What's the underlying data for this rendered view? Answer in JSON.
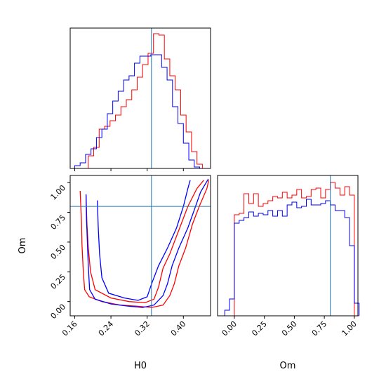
{
  "chart_data": [
    {
      "panel": "H0 marginal",
      "type": "histogram",
      "xlabel": "",
      "ylabel": "",
      "xlim": [
        0.15,
        0.46
      ],
      "x_ticks": [
        0.16,
        0.24,
        0.32,
        0.4
      ],
      "truth_x": 0.3295,
      "bin_edges": [
        0.16,
        0.166,
        0.172,
        0.178,
        0.184,
        0.19,
        0.196,
        0.202,
        0.208,
        0.214,
        0.22,
        0.226,
        0.232,
        0.238,
        0.244,
        0.25,
        0.256,
        0.262,
        0.268,
        0.274,
        0.28,
        0.286,
        0.292,
        0.298,
        0.304,
        0.31,
        0.316,
        0.322,
        0.328,
        0.334,
        0.34,
        0.346,
        0.352,
        0.358,
        0.364,
        0.37,
        0.376,
        0.382,
        0.388,
        0.394,
        0.4,
        0.406,
        0.412,
        0.418,
        0.424,
        0.43,
        0.436,
        0.442,
        0.448
      ],
      "series": [
        {
          "color": "#ff0000",
          "counts": [
            0.0,
            0.0,
            0.0,
            0.0,
            0.0,
            0.09,
            0.09,
            0.15,
            0.15,
            0.28,
            0.28,
            0.3,
            0.3,
            0.34,
            0.34,
            0.38,
            0.38,
            0.44,
            0.44,
            0.49,
            0.49,
            0.56,
            0.56,
            0.65,
            0.65,
            0.74,
            0.74,
            0.82,
            0.82,
            0.96,
            0.96,
            0.95,
            0.95,
            0.78,
            0.78,
            0.66,
            0.66,
            0.56,
            0.56,
            0.38,
            0.38,
            0.26,
            0.26,
            0.12,
            0.12,
            0.03,
            0.03,
            0.0
          ]
        },
        {
          "color": "#0000ff",
          "counts": [
            0.02,
            0.02,
            0.04,
            0.04,
            0.1,
            0.1,
            0.14,
            0.14,
            0.22,
            0.22,
            0.28,
            0.28,
            0.39,
            0.39,
            0.48,
            0.48,
            0.55,
            0.55,
            0.63,
            0.63,
            0.66,
            0.66,
            0.75,
            0.75,
            0.8,
            0.8,
            0.8,
            0.8,
            0.81,
            0.81,
            0.81,
            0.81,
            0.72,
            0.72,
            0.63,
            0.63,
            0.44,
            0.44,
            0.32,
            0.32,
            0.18,
            0.18,
            0.06,
            0.06,
            0.01,
            0.01,
            0.0,
            0.0
          ]
        }
      ]
    },
    {
      "panel": "H0 vs Om",
      "type": "contour",
      "xlabel": "H0",
      "ylabel": "Om",
      "xlim": [
        0.15,
        0.46
      ],
      "ylim": [
        -0.12,
        1.06
      ],
      "x_ticks": [
        0.16,
        0.24,
        0.32,
        0.4
      ],
      "y_ticks": [
        0.0,
        0.25,
        0.5,
        0.75,
        1.0
      ],
      "truth": {
        "H0": 0.3295,
        "Om": 0.8
      },
      "series": [
        {
          "color": "#ff0000",
          "contours": [
            [
              [
                0.172,
                0.93
              ],
              [
                0.175,
                0.67
              ],
              [
                0.176,
                0.48
              ],
              [
                0.179,
                0.25
              ],
              [
                0.182,
                0.1
              ],
              [
                0.192,
                0.04
              ],
              [
                0.22,
                0.0
              ],
              [
                0.26,
                -0.03
              ],
              [
                0.3,
                -0.04
              ],
              [
                0.33,
                -0.05
              ],
              [
                0.355,
                -0.03
              ],
              [
                0.37,
                0.05
              ],
              [
                0.38,
                0.15
              ],
              [
                0.39,
                0.3
              ],
              [
                0.405,
                0.45
              ],
              [
                0.42,
                0.65
              ],
              [
                0.435,
                0.8
              ],
              [
                0.452,
                0.95
              ],
              [
                0.456,
                1.02
              ]
            ],
            [
              [
                0.185,
                0.9
              ],
              [
                0.187,
                0.65
              ],
              [
                0.19,
                0.45
              ],
              [
                0.195,
                0.25
              ],
              [
                0.205,
                0.1
              ],
              [
                0.24,
                0.03
              ],
              [
                0.28,
                0.0
              ],
              [
                0.315,
                -0.01
              ],
              [
                0.335,
                0.02
              ],
              [
                0.345,
                0.12
              ],
              [
                0.355,
                0.28
              ],
              [
                0.37,
                0.4
              ],
              [
                0.39,
                0.6
              ],
              [
                0.41,
                0.8
              ],
              [
                0.43,
                0.95
              ],
              [
                0.445,
                1.02
              ]
            ]
          ]
        },
        {
          "color": "#0000ff",
          "contours": [
            [
              [
                0.185,
                0.9
              ],
              [
                0.186,
                0.7
              ],
              [
                0.188,
                0.5
              ],
              [
                0.19,
                0.3
              ],
              [
                0.193,
                0.1
              ],
              [
                0.205,
                0.02
              ],
              [
                0.24,
                -0.02
              ],
              [
                0.28,
                -0.04
              ],
              [
                0.31,
                -0.05
              ],
              [
                0.335,
                -0.03
              ],
              [
                0.355,
                0.05
              ],
              [
                0.365,
                0.15
              ],
              [
                0.375,
                0.3
              ],
              [
                0.39,
                0.45
              ],
              [
                0.41,
                0.62
              ],
              [
                0.425,
                0.78
              ],
              [
                0.438,
                0.92
              ],
              [
                0.455,
                1.03
              ]
            ],
            [
              [
                0.21,
                0.85
              ],
              [
                0.212,
                0.62
              ],
              [
                0.215,
                0.4
              ],
              [
                0.22,
                0.2
              ],
              [
                0.235,
                0.07
              ],
              [
                0.27,
                0.03
              ],
              [
                0.3,
                0.01
              ],
              [
                0.32,
                0.04
              ],
              [
                0.33,
                0.15
              ],
              [
                0.345,
                0.3
              ],
              [
                0.365,
                0.45
              ],
              [
                0.385,
                0.62
              ],
              [
                0.4,
                0.8
              ],
              [
                0.41,
                0.95
              ],
              [
                0.415,
                1.02
              ]
            ]
          ]
        }
      ]
    },
    {
      "panel": "Om marginal",
      "type": "histogram",
      "xlabel": "Om",
      "ylabel": "",
      "xlim": [
        -0.14,
        1.03
      ],
      "x_ticks": [
        0.0,
        0.25,
        0.5,
        0.75,
        1.0
      ],
      "x_tick_labels": [
        "0.00",
        "0.25",
        "0.50",
        "0.75",
        "1.00"
      ],
      "truth_x": 0.8,
      "bin_edges": [
        -0.12,
        -0.08,
        -0.04,
        0.0,
        0.04,
        0.08,
        0.12,
        0.16,
        0.2,
        0.24,
        0.28,
        0.32,
        0.36,
        0.4,
        0.44,
        0.48,
        0.52,
        0.56,
        0.6,
        0.64,
        0.68,
        0.72,
        0.76,
        0.8,
        0.84,
        0.88,
        0.92,
        0.96,
        1.0,
        1.04
      ],
      "series": [
        {
          "color": "#ff0000",
          "counts": [
            0.0,
            0.0,
            0.0,
            0.72,
            0.73,
            0.87,
            0.8,
            0.87,
            0.78,
            0.8,
            0.82,
            0.85,
            0.84,
            0.88,
            0.84,
            0.86,
            0.9,
            0.84,
            0.85,
            0.9,
            0.91,
            0.84,
            0.9,
            0.95,
            0.91,
            0.86,
            0.92,
            0.86,
            0.0
          ]
        },
        {
          "color": "#0000ff",
          "counts": [
            0.0,
            0.04,
            0.12,
            0.66,
            0.68,
            0.7,
            0.74,
            0.71,
            0.73,
            0.72,
            0.75,
            0.71,
            0.75,
            0.71,
            0.79,
            0.81,
            0.77,
            0.78,
            0.83,
            0.79,
            0.79,
            0.8,
            0.82,
            0.79,
            0.75,
            0.75,
            0.7,
            0.5,
            0.09
          ]
        }
      ]
    }
  ],
  "colors": {
    "series_1": "#ff0000",
    "series_2": "#0000ff",
    "truth_line": "#1f77b4"
  }
}
